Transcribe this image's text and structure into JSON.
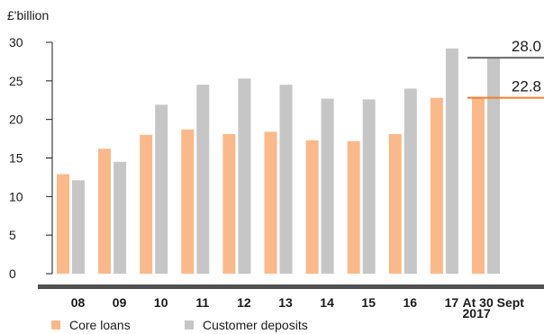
{
  "chart_data": {
    "type": "bar",
    "ylabel": "£'billion",
    "ylim": [
      0,
      30
    ],
    "yticks": [
      0,
      5,
      10,
      15,
      20,
      25,
      30
    ],
    "categories": [
      "08",
      "09",
      "10",
      "11",
      "12",
      "13",
      "14",
      "15",
      "16",
      "17",
      "At 30 Sept 2017"
    ],
    "category_labels": [
      [
        "08"
      ],
      [
        "09"
      ],
      [
        "10"
      ],
      [
        "11"
      ],
      [
        "12"
      ],
      [
        "13"
      ],
      [
        "14"
      ],
      [
        "15"
      ],
      [
        "16"
      ],
      [
        "17"
      ],
      [
        "At 30 Sept",
        "2017"
      ]
    ],
    "series": [
      {
        "name": "Core loans",
        "color": "#f9b98a",
        "values": [
          12.9,
          16.2,
          18.0,
          18.7,
          18.1,
          18.4,
          17.3,
          17.2,
          18.1,
          22.8,
          22.8
        ]
      },
      {
        "name": "Customer deposits",
        "color": "#c6c6c6",
        "values": [
          12.1,
          14.5,
          21.9,
          24.5,
          25.3,
          24.5,
          22.7,
          22.6,
          24.0,
          29.2,
          28.0
        ]
      }
    ],
    "annotations": [
      {
        "text": "28.0",
        "value": 28.0,
        "color": "#6b6b6b"
      },
      {
        "text": "22.8",
        "value": 22.8,
        "color": "#f07d2e"
      }
    ],
    "grid": false,
    "legend_position": "bottom-left"
  }
}
